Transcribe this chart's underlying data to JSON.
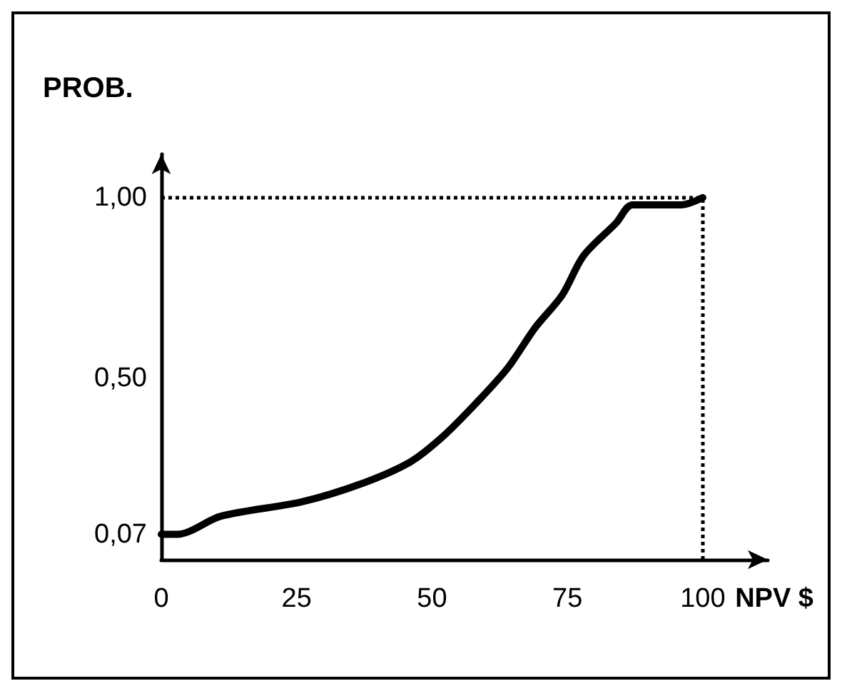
{
  "chart_data": {
    "type": "line",
    "xlabel": "NPV $",
    "ylabel": "PROB.",
    "x": [
      0,
      3,
      11,
      26,
      37,
      46,
      52,
      58,
      64,
      69,
      74,
      78,
      84,
      87,
      96,
      100
    ],
    "series": [
      {
        "color": "#000000",
        "values": [
          0.07,
          0.07,
          0.12,
          0.16,
          0.21,
          0.27,
          0.34,
          0.43,
          0.53,
          0.64,
          0.73,
          0.84,
          0.93,
          0.98,
          0.98,
          1.0
        ]
      }
    ],
    "xlim": [
      0,
      112
    ],
    "xticks": [
      0,
      25,
      50,
      75,
      100
    ],
    "ylim": [
      0,
      1.12
    ],
    "yticks": [
      {
        "value": 0.07,
        "label": "0,07"
      },
      {
        "value": 0.5,
        "label": "0,50"
      },
      {
        "value": 1.0,
        "label": "1,00"
      }
    ],
    "ref_lines": [
      {
        "axis": "y",
        "value": 1.0,
        "label": null,
        "line_style": "dotted"
      },
      {
        "axis": "x",
        "value": 100,
        "label": null,
        "line_style": "dotted"
      }
    ],
    "grid": false,
    "marker": "none",
    "line_style": "solid"
  }
}
